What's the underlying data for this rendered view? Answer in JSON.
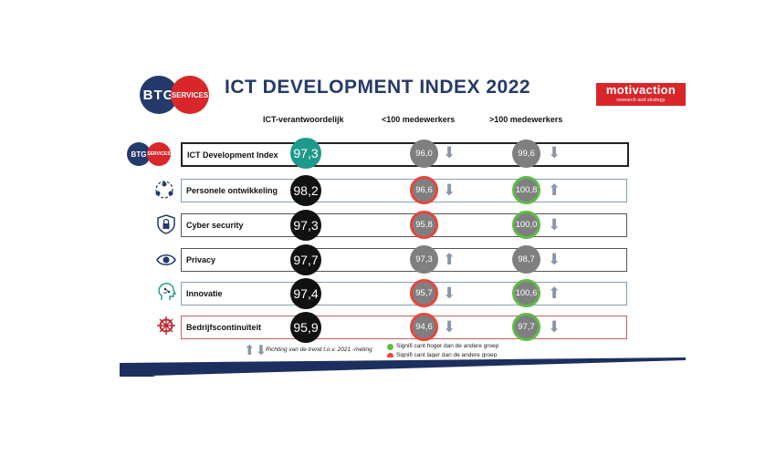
{
  "header": {
    "title": "ICT DEVELOPMENT INDEX 2022",
    "logo_left": {
      "text1": "BTG",
      "text2": "SERVICES"
    },
    "logo_right": {
      "text1": "motivaction",
      "text2": "research and strategy"
    }
  },
  "columns": {
    "main": "ICT-verantwoordelijk",
    "small": "<100 medewerkers",
    "large": ">100 medewerkers"
  },
  "rows": [
    {
      "label": "ICT Development Index",
      "main": "97,3",
      "small": "96,0",
      "small_trend": "down",
      "small_sig": "none",
      "large": "99,6",
      "large_trend": "down",
      "large_sig": "none",
      "icon": "btg-services-logo"
    },
    {
      "label": "Personele ontwikkeling",
      "main": "98,2",
      "small": "96,6",
      "small_trend": "down",
      "small_sig": "lower",
      "large": "100,8",
      "large_trend": "up",
      "large_sig": "higher",
      "icon": "people-network-icon"
    },
    {
      "label": "Cyber security",
      "main": "97,3",
      "small": "95,8",
      "small_trend": "none",
      "small_sig": "lower",
      "large": "100,0",
      "large_trend": "down",
      "large_sig": "higher",
      "icon": "shield-lock-icon"
    },
    {
      "label": "Privacy",
      "main": "97,7",
      "small": "97,3",
      "small_trend": "up",
      "small_sig": "none",
      "large": "98,7",
      "large_trend": "down",
      "large_sig": "none",
      "icon": "eye-icon"
    },
    {
      "label": "Innovatie",
      "main": "97,4",
      "small": "95,7",
      "small_trend": "down",
      "small_sig": "lower",
      "large": "100,6",
      "large_trend": "up",
      "large_sig": "higher",
      "icon": "head-circuit-icon"
    },
    {
      "label": "Bedrijfscontinuïteit",
      "main": "95,9",
      "small": "94,6",
      "small_trend": "down",
      "small_sig": "lower",
      "large": "97,7",
      "large_trend": "down",
      "large_sig": "higher",
      "icon": "ship-wheel-icon"
    }
  ],
  "legend": {
    "trend": "Richting van de trend t.o.v. 2021 -meting",
    "higher": "Signifi cant hoger dan de andere groep",
    "lower": "Signifi cant lager dan de andere groep"
  },
  "colors": {
    "navy": "#243a6b",
    "red": "#d9262a",
    "teal": "#1f9a8a",
    "sig_higher": "#5fbb46",
    "sig_lower": "#e8453c",
    "row_border_first": "#222222",
    "row_border_teal": "#7fa0ad",
    "row_border_red": "#c46060",
    "arrow": "#8a97a8"
  }
}
